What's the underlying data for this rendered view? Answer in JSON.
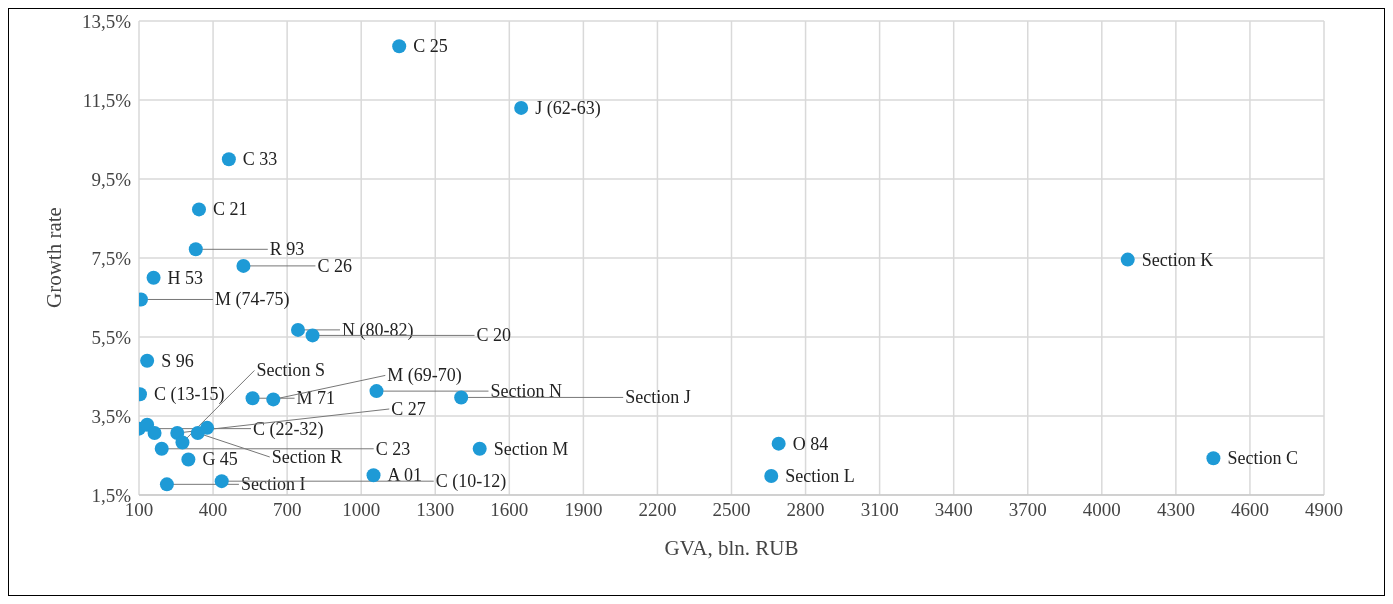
{
  "chart_data": {
    "type": "scatter",
    "xlabel": "GVA, bln. RUB",
    "ylabel": "Growth rate",
    "x": [
      1154,
      1648,
      464,
      343,
      330,
      523,
      159,
      108,
      744,
      803,
      133,
      104,
      1062,
      1405,
      560,
      644,
      1050,
      1480,
      2691,
      2661,
      4105,
      4452,
      213,
      435,
      300,
      100,
      133,
      163,
      192,
      255,
      276,
      338,
      376
    ],
    "values": [
      12.86,
      11.3,
      10.0,
      8.73,
      7.72,
      7.3,
      7.0,
      6.45,
      5.68,
      5.54,
      4.9,
      4.05,
      4.13,
      3.97,
      3.95,
      3.92,
      2.0,
      2.67,
      2.8,
      1.98,
      7.46,
      2.43,
      1.77,
      1.85,
      2.4,
      3.18,
      3.28,
      3.07,
      2.67,
      3.07,
      2.83,
      3.07,
      3.2
    ],
    "color": "#1e9ad6",
    "marker": "circle",
    "grid": true,
    "legend": false,
    "xlim": [
      100,
      4900
    ],
    "xticks": [
      100,
      400,
      700,
      1000,
      1300,
      1600,
      1900,
      2200,
      2500,
      2800,
      3100,
      3400,
      3700,
      4000,
      4300,
      4600,
      4900
    ],
    "ylim": [
      1.5,
      13.5
    ],
    "yticks": [
      {
        "value": 1.5,
        "label": "1,5%"
      },
      {
        "value": 3.5,
        "label": "3,5%"
      },
      {
        "value": 5.5,
        "label": "5,5%"
      },
      {
        "value": 7.5,
        "label": "7,5%"
      },
      {
        "value": 9.5,
        "label": "9,5%"
      },
      {
        "value": 11.5,
        "label": "11,5%"
      },
      {
        "value": 13.5,
        "label": "13,5%"
      }
    ],
    "annotations": [
      {
        "text": "C 25",
        "x": 1154,
        "y": 12.86
      },
      {
        "text": "J (62-63)",
        "x": 1648,
        "y": 11.3
      },
      {
        "text": "C 33",
        "x": 464,
        "y": 10.0
      },
      {
        "text": "C 21",
        "x": 343,
        "y": 8.73
      },
      {
        "text": "R 93",
        "x": 330,
        "y": 7.72
      },
      {
        "text": "C 26",
        "x": 523,
        "y": 7.3
      },
      {
        "text": "H 53",
        "x": 159,
        "y": 7.0
      },
      {
        "text": "M (74-75)",
        "x": 108,
        "y": 6.45
      },
      {
        "text": "N (80-82)",
        "x": 744,
        "y": 5.68
      },
      {
        "text": "C 20",
        "x": 803,
        "y": 5.54
      },
      {
        "text": "S 96",
        "x": 133,
        "y": 4.9
      },
      {
        "text": "C (13-15)",
        "x": 104,
        "y": 4.05
      },
      {
        "text": "Section N",
        "x": 1062,
        "y": 4.13
      },
      {
        "text": "Section J",
        "x": 1405,
        "y": 3.97
      },
      {
        "text": "M 71",
        "x": 560,
        "y": 3.95
      },
      {
        "text": "M (69-70)",
        "x": 644,
        "y": 3.92
      },
      {
        "text": "A 01",
        "x": 1050,
        "y": 2.0
      },
      {
        "text": "Section M",
        "x": 1480,
        "y": 2.67
      },
      {
        "text": "O 84",
        "x": 2691,
        "y": 2.8
      },
      {
        "text": "Section L",
        "x": 2661,
        "y": 1.98
      },
      {
        "text": "Section K",
        "x": 4105,
        "y": 7.46
      },
      {
        "text": "Section C",
        "x": 4452,
        "y": 2.43
      },
      {
        "text": "Section I",
        "x": 213,
        "y": 1.77
      },
      {
        "text": "C (10-12)",
        "x": 435,
        "y": 1.85
      },
      {
        "text": "G 45",
        "x": 300,
        "y": 2.4
      },
      {
        "text": "C (22-32)",
        "x": 100,
        "y": 3.18
      },
      {
        "text": "C 23",
        "x": 192,
        "y": 2.67
      },
      {
        "text": "C 27",
        "x": 255,
        "y": 3.07
      },
      {
        "text": "Section S",
        "x": 276,
        "y": 2.83
      },
      {
        "text": "Section R",
        "x": 338,
        "y": 3.07
      }
    ]
  }
}
